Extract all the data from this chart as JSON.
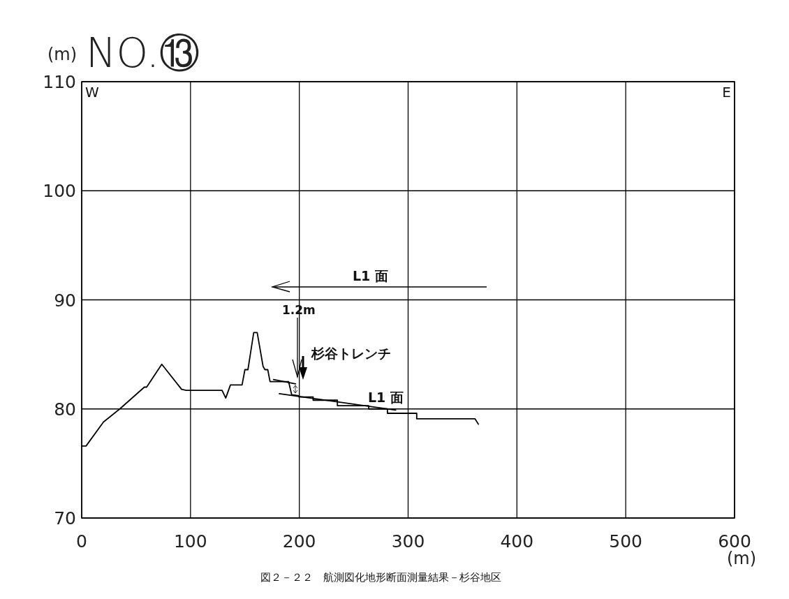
{
  "chart_data": {
    "type": "line",
    "title": "NO.⑬",
    "xlabel": "(m)",
    "ylabel": "(m)",
    "xlim": [
      0,
      600
    ],
    "ylim": [
      70,
      110
    ],
    "xticks": [
      0,
      100,
      200,
      300,
      400,
      500,
      600
    ],
    "yticks": [
      70,
      80,
      90,
      100,
      110
    ],
    "grid": true,
    "series": [
      {
        "color": "#000000",
        "x": [
          0,
          4,
          20,
          35,
          57.6,
          59.7,
          73.6,
          91.8,
          96,
          129,
          132.4,
          136.7,
          147.4,
          150,
          152.8,
          158.1,
          161.3,
          166.7,
          168.4,
          171,
          173.1,
          190.2,
          193,
          199.7,
          199.7,
          212.7,
          212.7,
          235,
          235,
          263.8,
          263.8,
          281,
          281,
          307.9,
          307.9,
          361.4,
          364.6
        ],
        "values": [
          76.6,
          76.6,
          78.8,
          80.0,
          82.0,
          82.0,
          84.1,
          81.8,
          81.7,
          81.7,
          81.0,
          82.2,
          82.2,
          83.6,
          83.6,
          87.0,
          87.0,
          83.9,
          83.6,
          83.6,
          82.5,
          82.5,
          81.3,
          81.2,
          81.1,
          81.1,
          80.8,
          80.8,
          80.3,
          80.3,
          80.0,
          80.0,
          79.6,
          79.6,
          79.1,
          79.1,
          78.6
        ]
      },
      {
        "color": "#000000",
        "x": [
          176.3,
          196.6
        ],
        "values": [
          82.7,
          82.3
        ]
      },
      {
        "color": "#000000",
        "x": [
          181.6,
          288.6
        ],
        "values": [
          81.4,
          79.9
        ]
      }
    ],
    "annotations": [
      "W",
      "E",
      "L1 面",
      "1.2m",
      "杉谷トレンチ",
      "L1 面",
      "図２－２２　航測図化地形断面測量結果－杉谷地区"
    ]
  }
}
